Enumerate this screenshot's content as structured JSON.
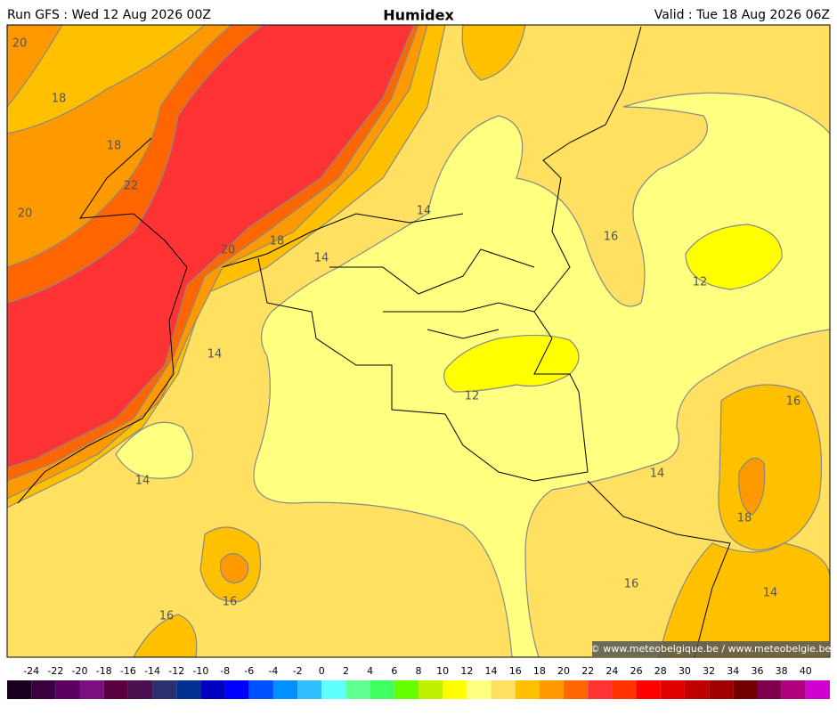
{
  "header": {
    "run": "Run GFS : Wed 12 Aug 2026 00Z",
    "title": "Humidex",
    "valid": "Valid : Tue 18 Aug 2026 06Z"
  },
  "map": {
    "contour_labels": [
      "20",
      "18",
      "18",
      "22",
      "20",
      "14",
      "16",
      "20",
      "18",
      "14",
      "12",
      "14",
      "12",
      "16",
      "14",
      "14",
      "18",
      "16",
      "14",
      "16",
      "16"
    ],
    "credit": "© www.meteobelgique.be / www.meteobelgie.be"
  },
  "colorbar": {
    "labels": [
      -24,
      -22,
      -20,
      -18,
      -16,
      -14,
      -12,
      -10,
      -8,
      -6,
      -4,
      -2,
      0,
      2,
      4,
      6,
      8,
      10,
      12,
      14,
      16,
      18,
      20,
      22,
      24,
      26,
      28,
      30,
      32,
      34,
      36,
      38,
      40
    ],
    "colors": [
      "#1a0020",
      "#3a0040",
      "#5a0060",
      "#7a1080",
      "#5a0040",
      "#4a1050",
      "#2a3070",
      "#003090",
      "#0000c0",
      "#0000ff",
      "#0050ff",
      "#0090ff",
      "#30c0ff",
      "#60ffff",
      "#60ff90",
      "#40ff60",
      "#66ff00",
      "#c0f000",
      "#ffff00",
      "#ffff80",
      "#ffe060",
      "#ffc000",
      "#ff9900",
      "#ff6600",
      "#ff3333",
      "#ff3300",
      "#ff0000",
      "#e00000",
      "#c00000",
      "#a00000",
      "#700000",
      "#800050",
      "#b00080",
      "#d000d0"
    ]
  }
}
